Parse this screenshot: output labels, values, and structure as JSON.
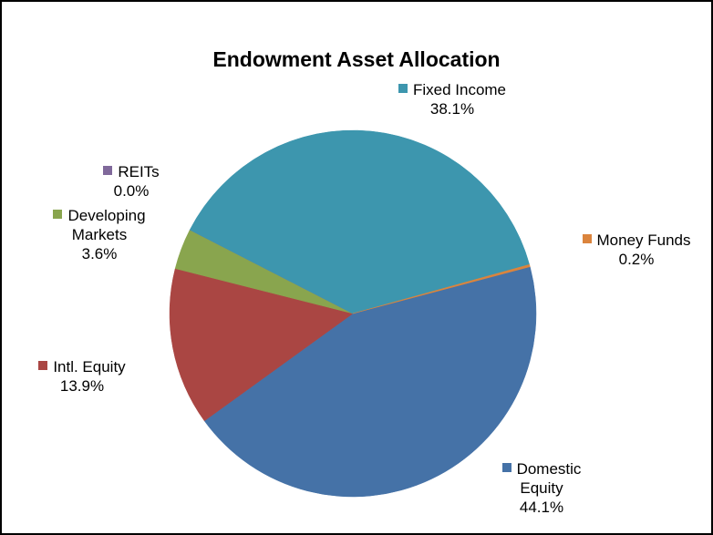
{
  "chart_data": {
    "type": "pie",
    "title": "Endowment Asset Allocation",
    "categories": [
      "Domestic Equity",
      "Intl. Equity",
      "Developing Markets",
      "REITs",
      "Fixed Income",
      "Money Funds"
    ],
    "values": [
      44.1,
      13.9,
      3.6,
      0.0,
      38.1,
      0.2
    ],
    "value_labels": [
      "44.1%",
      "13.9%",
      "3.6%",
      "0.0%",
      "38.1%",
      "0.2%"
    ],
    "colors": [
      "#4572a7",
      "#aa4643",
      "#89a54e",
      "#80699b",
      "#3d96ae",
      "#db843d"
    ]
  }
}
